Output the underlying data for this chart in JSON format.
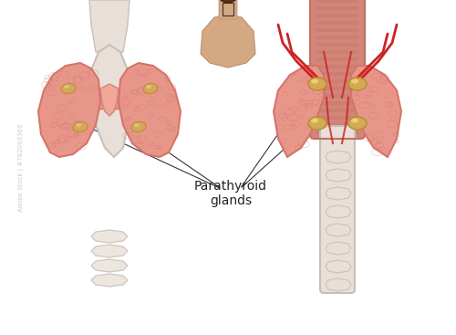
{
  "bg_color": "#ffffff",
  "label_text": "Parathyroid\nglands",
  "label_fontsize": 10,
  "thyroid_color_front": "#e8968a",
  "thyroid_color_shadow": "#d4756a",
  "esophagus_color": "#d4857a",
  "esophagus_stripe": "#c07060",
  "gland_color": "#d4aa55",
  "gland_edge": "#b8903a",
  "cartilage_color": "#e8e0d8",
  "cartilage_shadow": "#c8c0b8",
  "trachea_color": "#e8e0d8",
  "artery_color": "#cc2222",
  "skin_color": "#d4a882",
  "hair_color": "#5c3010",
  "annotation_color": "#333333"
}
